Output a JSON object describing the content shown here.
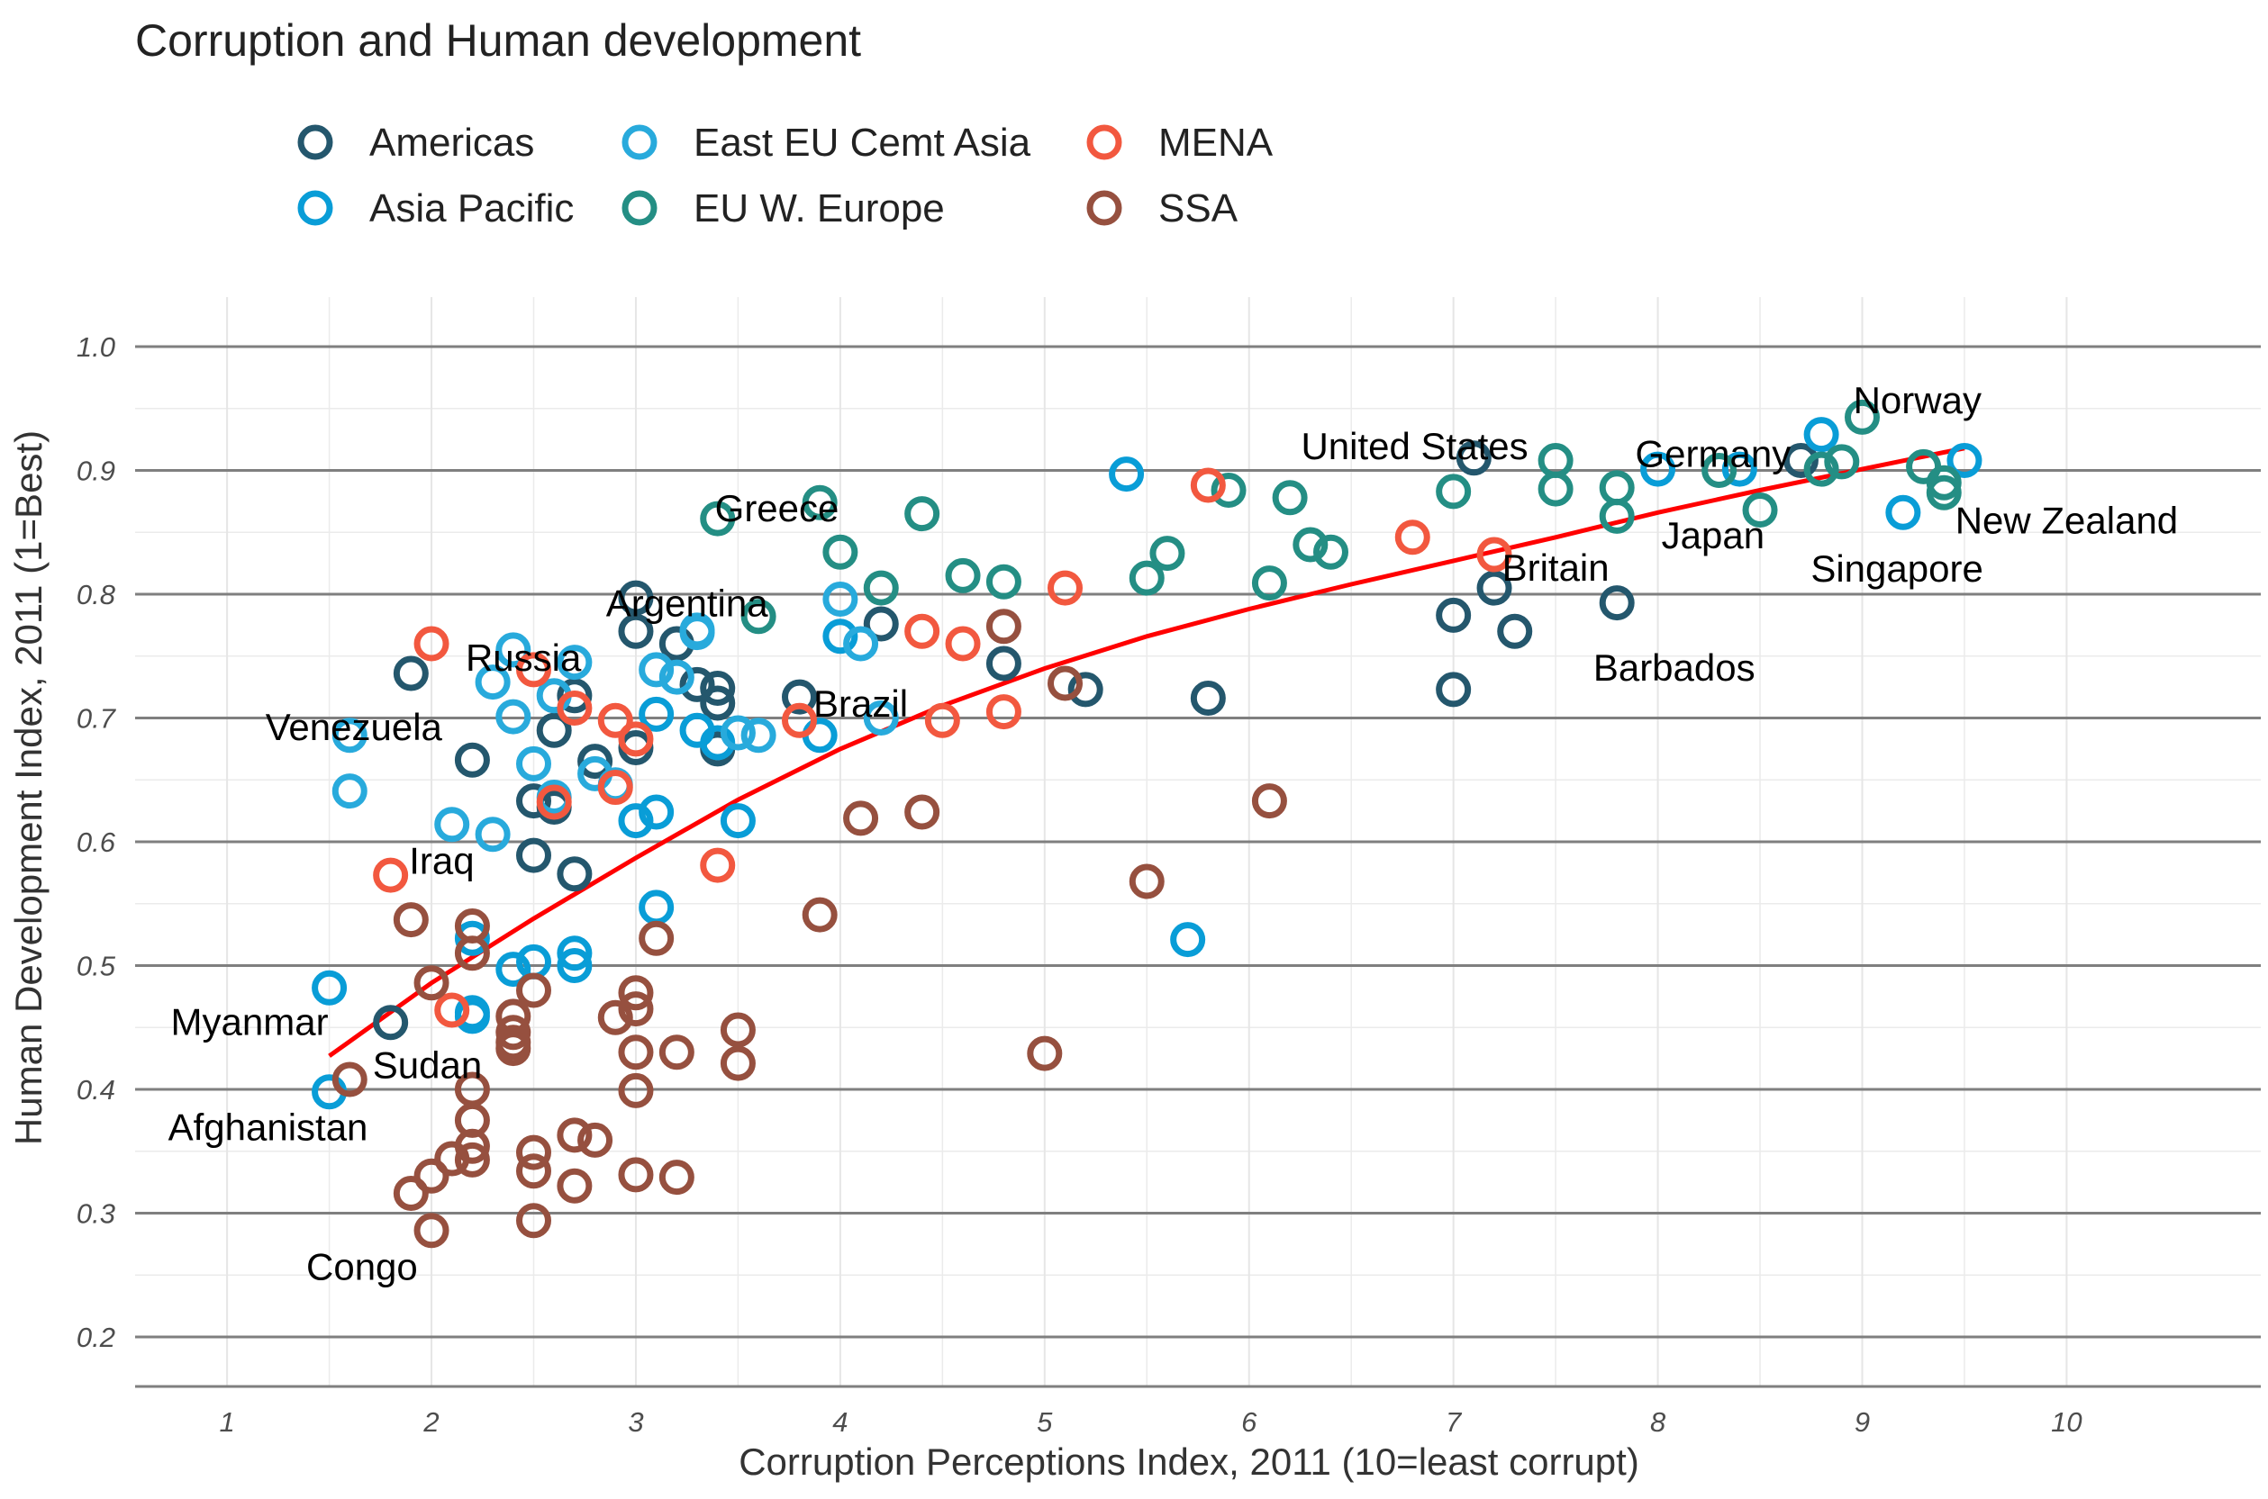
{
  "chart_data": {
    "type": "scatter",
    "title": "Corruption and Human development",
    "xlabel": "Corruption Perceptions Index, 2011 (10=least corrupt)",
    "ylabel": "Human Development Index, 2011 (1=Best)",
    "xlim": [
      0.55,
      10.95
    ],
    "ylim": [
      0.16,
      1.04
    ],
    "x_ticks": [
      1,
      2,
      3,
      4,
      5,
      6,
      7,
      8,
      9,
      10
    ],
    "y_ticks": [
      0.2,
      0.3,
      0.4,
      0.5,
      0.6,
      0.7,
      0.8,
      0.9,
      1.0
    ],
    "x_tick_labels": [
      "1",
      "2",
      "3",
      "4",
      "5",
      "6",
      "7",
      "8",
      "9",
      "10"
    ],
    "y_tick_labels": [
      "0.2",
      "0.3",
      "0.4",
      "0.5",
      "0.6",
      "0.7",
      "0.8",
      "0.9",
      "1.0"
    ],
    "grid": true,
    "legend_position": "top",
    "series": [
      {
        "name": "Americas",
        "color": "#24576D",
        "points": [
          [
            1.8,
            0.454
          ],
          [
            1.9,
            0.736
          ],
          [
            2.2,
            0.666
          ],
          [
            2.5,
            0.589
          ],
          [
            2.5,
            0.633
          ],
          [
            2.6,
            0.69
          ],
          [
            2.6,
            0.628
          ],
          [
            2.7,
            0.574
          ],
          [
            2.7,
            0.718
          ],
          [
            2.8,
            0.665
          ],
          [
            3.0,
            0.797
          ],
          [
            3.0,
            0.77
          ],
          [
            3.0,
            0.676
          ],
          [
            3.2,
            0.76
          ],
          [
            3.3,
            0.727
          ],
          [
            3.4,
            0.724
          ],
          [
            3.4,
            0.712
          ],
          [
            3.4,
            0.675
          ],
          [
            3.8,
            0.717
          ],
          [
            4.2,
            0.776
          ],
          [
            4.8,
            0.744
          ],
          [
            5.2,
            0.723
          ],
          [
            5.8,
            0.716
          ],
          [
            7.0,
            0.723
          ],
          [
            7.0,
            0.783
          ],
          [
            7.1,
            0.91
          ],
          [
            7.2,
            0.805
          ],
          [
            7.3,
            0.77
          ],
          [
            7.8,
            0.793
          ],
          [
            8.7,
            0.908
          ]
        ]
      },
      {
        "name": "Asia Pacific",
        "color": "#099DD7",
        "points": [
          [
            1.5,
            0.482
          ],
          [
            1.5,
            0.398
          ],
          [
            2.2,
            0.462
          ],
          [
            2.2,
            0.459
          ],
          [
            2.2,
            0.522
          ],
          [
            2.4,
            0.497
          ],
          [
            2.5,
            0.503
          ],
          [
            2.7,
            0.51
          ],
          [
            2.7,
            0.5
          ],
          [
            3.0,
            0.617
          ],
          [
            3.1,
            0.703
          ],
          [
            3.1,
            0.547
          ],
          [
            3.1,
            0.624
          ],
          [
            3.3,
            0.69
          ],
          [
            3.4,
            0.68
          ],
          [
            3.5,
            0.617
          ],
          [
            3.9,
            0.686
          ],
          [
            4.0,
            0.766
          ],
          [
            5.4,
            0.897
          ],
          [
            5.7,
            0.521
          ],
          [
            8.0,
            0.901
          ],
          [
            8.4,
            0.901
          ],
          [
            8.8,
            0.929
          ],
          [
            9.2,
            0.866
          ],
          [
            9.5,
            0.908
          ]
        ]
      },
      {
        "name": "East EU Cemt Asia",
        "color": "#28AADC",
        "points": [
          [
            1.6,
            0.686
          ],
          [
            1.6,
            0.641
          ],
          [
            2.1,
            0.614
          ],
          [
            2.3,
            0.729
          ],
          [
            2.3,
            0.606
          ],
          [
            2.4,
            0.755
          ],
          [
            2.4,
            0.701
          ],
          [
            2.5,
            0.663
          ],
          [
            2.6,
            0.718
          ],
          [
            2.6,
            0.636
          ],
          [
            2.7,
            0.745
          ],
          [
            2.8,
            0.655
          ],
          [
            2.9,
            0.646
          ],
          [
            3.1,
            0.739
          ],
          [
            3.2,
            0.733
          ],
          [
            3.3,
            0.769
          ],
          [
            3.3,
            0.771
          ],
          [
            3.5,
            0.688
          ],
          [
            3.6,
            0.686
          ],
          [
            4.0,
            0.796
          ],
          [
            4.1,
            0.76
          ],
          [
            4.2,
            0.7
          ]
        ]
      },
      {
        "name": "EU W. Europe",
        "color": "#248E84",
        "points": [
          [
            3.4,
            0.861
          ],
          [
            3.6,
            0.782
          ],
          [
            3.9,
            0.874
          ],
          [
            4.0,
            0.834
          ],
          [
            4.2,
            0.805
          ],
          [
            4.4,
            0.865
          ],
          [
            4.6,
            0.815
          ],
          [
            4.8,
            0.81
          ],
          [
            5.5,
            0.813
          ],
          [
            5.6,
            0.833
          ],
          [
            5.9,
            0.884
          ],
          [
            6.1,
            0.809
          ],
          [
            6.2,
            0.878
          ],
          [
            6.3,
            0.84
          ],
          [
            6.4,
            0.834
          ],
          [
            7.0,
            0.883
          ],
          [
            7.5,
            0.908
          ],
          [
            7.5,
            0.885
          ],
          [
            7.8,
            0.863
          ],
          [
            7.8,
            0.886
          ],
          [
            8.3,
            0.9
          ],
          [
            8.5,
            0.868
          ],
          [
            8.8,
            0.901
          ],
          [
            8.9,
            0.907
          ],
          [
            9.0,
            0.943
          ],
          [
            9.3,
            0.903
          ],
          [
            9.4,
            0.89
          ],
          [
            9.4,
            0.882
          ]
        ]
      },
      {
        "name": "MENA",
        "color": "#F2583F",
        "points": [
          [
            1.8,
            0.573
          ],
          [
            2.0,
            0.76
          ],
          [
            2.1,
            0.464
          ],
          [
            2.5,
            0.739
          ],
          [
            2.6,
            0.632
          ],
          [
            2.7,
            0.708
          ],
          [
            2.9,
            0.698
          ],
          [
            2.9,
            0.644
          ],
          [
            3.0,
            0.683
          ],
          [
            3.4,
            0.581
          ],
          [
            3.8,
            0.698
          ],
          [
            4.4,
            0.77
          ],
          [
            4.5,
            0.698
          ],
          [
            4.6,
            0.76
          ],
          [
            4.8,
            0.705
          ],
          [
            5.1,
            0.805
          ],
          [
            5.8,
            0.888
          ],
          [
            6.8,
            0.846
          ],
          [
            7.2,
            0.832
          ]
        ]
      },
      {
        "name": "SSA",
        "color": "#96503F",
        "points": [
          [
            1.6,
            0.408
          ],
          [
            1.9,
            0.316
          ],
          [
            1.9,
            0.537
          ],
          [
            2.0,
            0.33
          ],
          [
            2.0,
            0.486
          ],
          [
            2.0,
            0.286
          ],
          [
            2.1,
            0.344
          ],
          [
            2.2,
            0.532
          ],
          [
            2.2,
            0.51
          ],
          [
            2.2,
            0.4
          ],
          [
            2.2,
            0.375
          ],
          [
            2.2,
            0.354
          ],
          [
            2.2,
            0.343
          ],
          [
            2.4,
            0.459
          ],
          [
            2.4,
            0.446
          ],
          [
            2.4,
            0.438
          ],
          [
            2.4,
            0.433
          ],
          [
            2.5,
            0.48
          ],
          [
            2.5,
            0.349
          ],
          [
            2.5,
            0.334
          ],
          [
            2.5,
            0.294
          ],
          [
            2.7,
            0.363
          ],
          [
            2.7,
            0.322
          ],
          [
            2.8,
            0.359
          ],
          [
            2.9,
            0.458
          ],
          [
            3.0,
            0.478
          ],
          [
            3.0,
            0.465
          ],
          [
            3.0,
            0.43
          ],
          [
            3.0,
            0.399
          ],
          [
            3.0,
            0.331
          ],
          [
            3.1,
            0.522
          ],
          [
            3.2,
            0.43
          ],
          [
            3.2,
            0.329
          ],
          [
            3.5,
            0.448
          ],
          [
            3.5,
            0.421
          ],
          [
            3.9,
            0.541
          ],
          [
            4.1,
            0.619
          ],
          [
            4.4,
            0.624
          ],
          [
            4.8,
            0.774
          ],
          [
            5.0,
            0.429
          ],
          [
            5.1,
            0.728
          ],
          [
            5.5,
            0.568
          ],
          [
            6.1,
            0.633
          ]
        ]
      }
    ],
    "trend_line": {
      "color": "#FF0000",
      "points": [
        [
          1.5,
          0.427
        ],
        [
          2.0,
          0.486
        ],
        [
          2.5,
          0.538
        ],
        [
          3.0,
          0.587
        ],
        [
          3.5,
          0.634
        ],
        [
          4.0,
          0.675
        ],
        [
          4.5,
          0.71
        ],
        [
          5.0,
          0.74
        ],
        [
          5.5,
          0.766
        ],
        [
          6.0,
          0.788
        ],
        [
          6.5,
          0.808
        ],
        [
          7.0,
          0.827
        ],
        [
          7.5,
          0.846
        ],
        [
          8.0,
          0.866
        ],
        [
          8.5,
          0.884
        ],
        [
          9.0,
          0.901
        ],
        [
          9.5,
          0.918
        ]
      ]
    },
    "annotations": [
      {
        "text": "Norway",
        "x": 9.27,
        "y": 0.957
      },
      {
        "text": "United States",
        "x": 6.81,
        "y": 0.92
      },
      {
        "text": "Germany",
        "x": 8.27,
        "y": 0.914
      },
      {
        "text": "Greece",
        "x": 3.69,
        "y": 0.87
      },
      {
        "text": "New Zealand",
        "x": 10.0,
        "y": 0.86
      },
      {
        "text": "Japan",
        "x": 8.27,
        "y": 0.848
      },
      {
        "text": "Britain",
        "x": 7.5,
        "y": 0.822
      },
      {
        "text": "Singapore",
        "x": 9.17,
        "y": 0.821
      },
      {
        "text": "Argentina",
        "x": 3.25,
        "y": 0.793
      },
      {
        "text": "Russia",
        "x": 2.45,
        "y": 0.749
      },
      {
        "text": "Barbados",
        "x": 8.08,
        "y": 0.741
      },
      {
        "text": "Brazil",
        "x": 4.1,
        "y": 0.712
      },
      {
        "text": "Venezuela",
        "x": 1.62,
        "y": 0.693
      },
      {
        "text": "Iraq",
        "x": 2.05,
        "y": 0.585
      },
      {
        "text": "Myanmar",
        "x": 1.11,
        "y": 0.455
      },
      {
        "text": "Sudan",
        "x": 1.98,
        "y": 0.42
      },
      {
        "text": "Afghanistan",
        "x": 1.2,
        "y": 0.37
      },
      {
        "text": "Congo",
        "x": 1.66,
        "y": 0.257
      }
    ]
  }
}
